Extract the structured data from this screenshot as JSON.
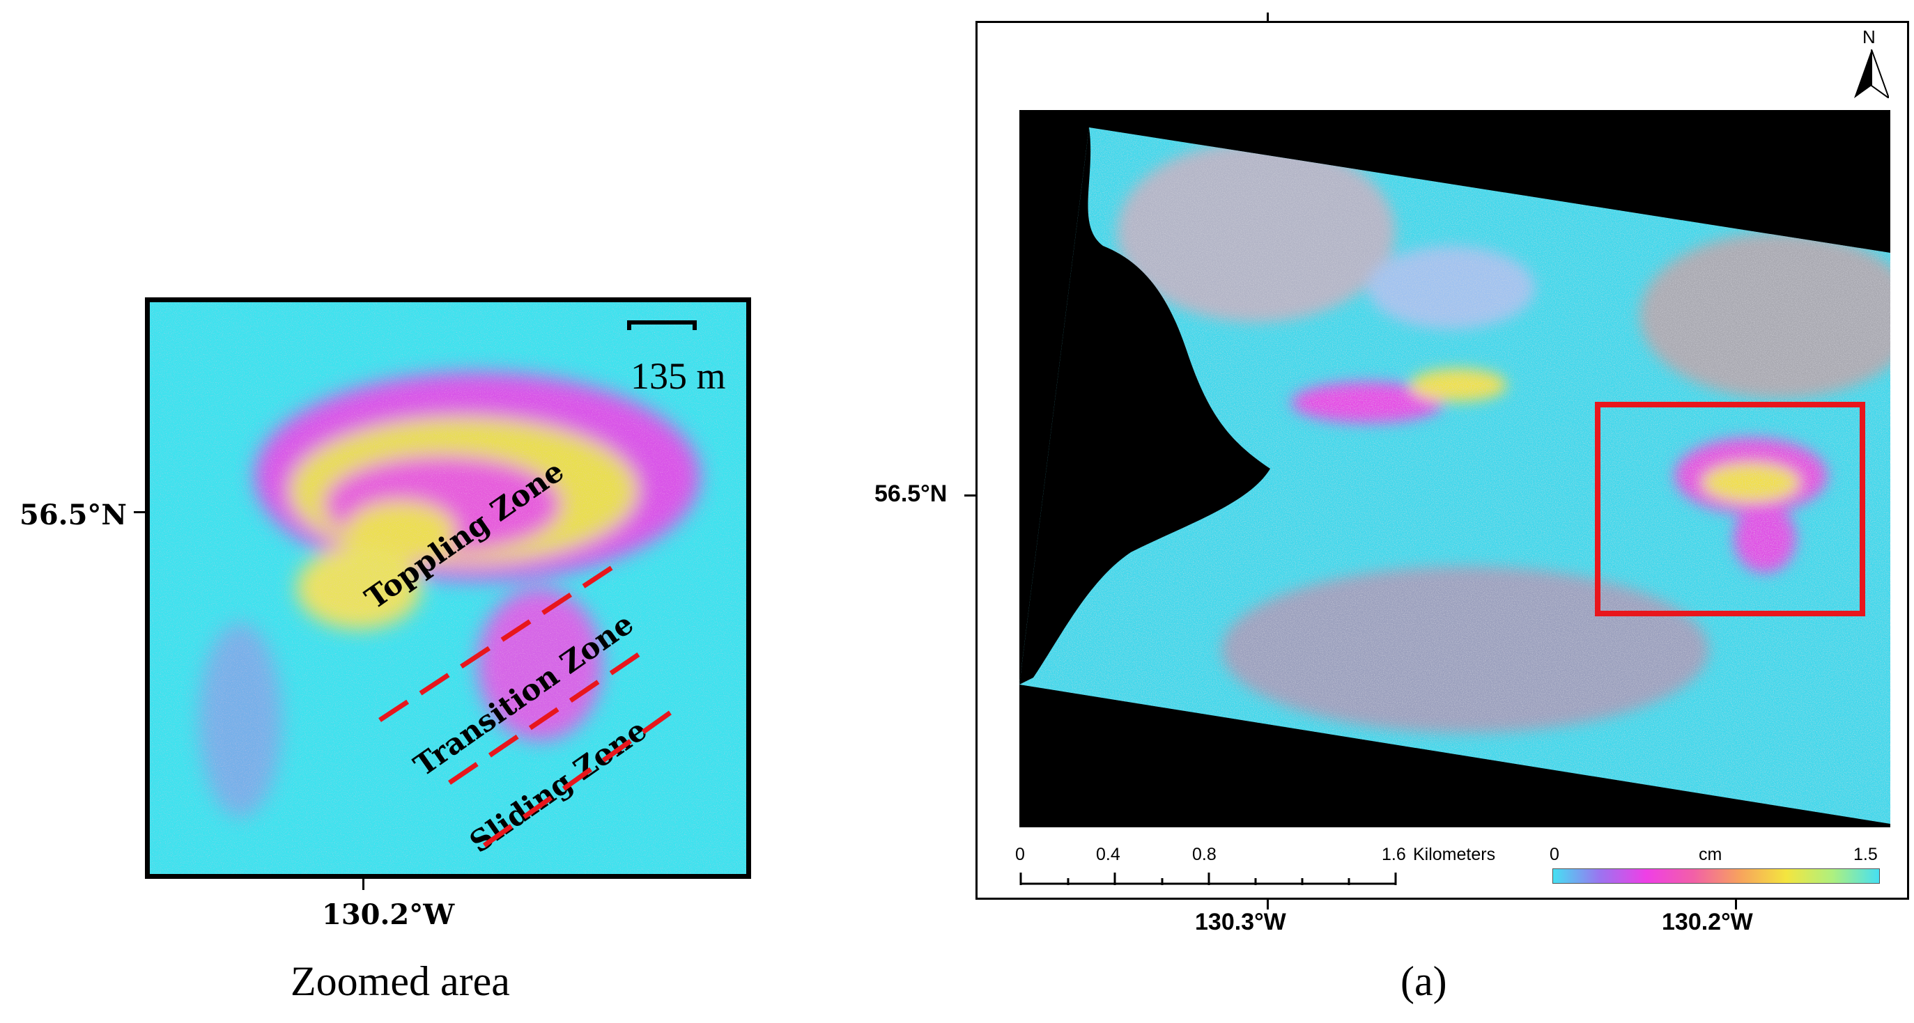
{
  "zoomed_panel": {
    "latitude_label": "56.5°N",
    "longitude_label": "130.2°W",
    "caption": "Zoomed area",
    "scale_bar_label": "135 m",
    "zone_labels": [
      "Toppling Zone",
      "Transition Zone",
      "Sliding Zone"
    ]
  },
  "map_panel": {
    "latitude_label": "56.5°N",
    "longitude_labels": [
      "130.3°W",
      "130.2°W"
    ],
    "caption": "(a)",
    "north_label": "N",
    "scale_bar": {
      "ticks": [
        "0",
        "0.4",
        "0.8",
        "1.6"
      ],
      "unit": "Kilometers"
    },
    "color_bar": {
      "min_label": "0",
      "max_label": "1.5",
      "unit": "cm",
      "colors": [
        "#46e0f2",
        "#9b74f0",
        "#ef3fe6",
        "#f25fa8",
        "#f7a25e",
        "#f4e53f",
        "#aef07f",
        "#46e0f2"
      ]
    },
    "highlight_box_color": "#e8161c"
  }
}
